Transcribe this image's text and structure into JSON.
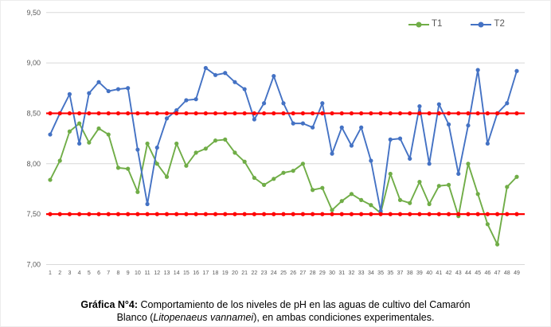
{
  "chart_data": {
    "type": "line",
    "x_labels": [
      "1",
      "2",
      "3",
      "4",
      "5",
      "6",
      "7",
      "8",
      "9",
      "10",
      "11",
      "12",
      "13",
      "14",
      "15",
      "16",
      "17",
      "18",
      "19",
      "20",
      "21",
      "22",
      "23",
      "24",
      "25",
      "26",
      "27",
      "28",
      "29",
      "30",
      "31",
      "32",
      "33",
      "34",
      "35",
      "35",
      "37",
      "38",
      "39",
      "40",
      "41",
      "42",
      "43",
      "44",
      "45",
      "46",
      "47",
      "48",
      "49"
    ],
    "series": [
      {
        "name": "T1",
        "color": "#70AD47",
        "values": [
          7.84,
          8.03,
          8.32,
          8.4,
          8.21,
          8.35,
          8.29,
          7.96,
          7.95,
          7.72,
          8.2,
          8.0,
          7.87,
          8.2,
          7.98,
          8.11,
          8.15,
          8.23,
          8.24,
          8.11,
          8.02,
          7.86,
          7.79,
          7.85,
          7.91,
          7.93,
          8.0,
          7.74,
          7.76,
          7.54,
          7.63,
          7.7,
          7.64,
          7.59,
          7.51,
          7.9,
          7.64,
          7.61,
          7.82,
          7.6,
          7.78,
          7.79,
          7.48,
          8.0,
          7.7,
          7.4,
          7.2,
          7.77,
          7.87
        ]
      },
      {
        "name": "T2",
        "color": "#4472C4",
        "values": [
          8.29,
          8.5,
          8.69,
          8.2,
          8.7,
          8.81,
          8.72,
          8.74,
          8.75,
          8.14,
          7.6,
          8.16,
          8.45,
          8.53,
          8.63,
          8.64,
          8.95,
          8.88,
          8.9,
          8.81,
          8.74,
          8.44,
          8.6,
          8.87,
          8.6,
          8.4,
          8.4,
          8.36,
          8.6,
          8.1,
          8.36,
          8.18,
          8.36,
          8.03,
          7.53,
          8.24,
          8.25,
          8.05,
          8.57,
          8.0,
          8.59,
          8.39,
          7.9,
          8.38,
          8.93,
          8.2,
          8.5,
          8.6,
          8.92
        ]
      }
    ],
    "reference_lines": [
      {
        "name": "upper-limit",
        "value": 8.5,
        "color": "#FF0000"
      },
      {
        "name": "lower-limit",
        "value": 7.5,
        "color": "#FF0000"
      }
    ],
    "ylim": [
      7.0,
      9.5
    ],
    "yticks": [
      7.0,
      7.5,
      8.0,
      8.5,
      9.0,
      9.5
    ],
    "ytick_labels": [
      "7,00",
      "7,50",
      "8,00",
      "8,50",
      "9,00",
      "9,50"
    ],
    "grid": "horizontal",
    "legend_position": "top-right",
    "title": "",
    "xlabel": "",
    "ylabel": ""
  },
  "legend": {
    "t1_label": "T1",
    "t2_label": "T2"
  },
  "caption": {
    "label": "Gráfica N°4:",
    "text_before_species": " Comportamiento de los niveles de pH en las aguas de cultivo del Camarón Blanco (",
    "species": "Litopenaeus vannamei",
    "text_after_species": "), en ambas condiciones experimentales."
  },
  "colors": {
    "t1": "#70AD47",
    "t2": "#4472C4",
    "reference": "#FF0000",
    "gridline": "#D9D9D9",
    "axis_text": "#595959"
  }
}
